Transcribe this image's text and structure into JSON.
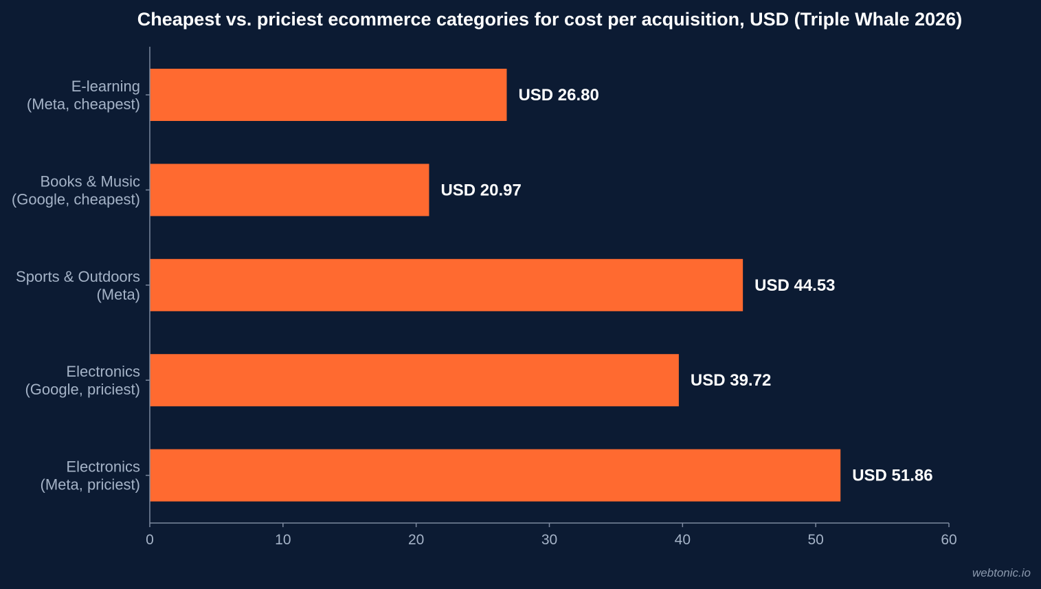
{
  "chart_data": {
    "type": "bar",
    "orientation": "horizontal",
    "title": "Cheapest vs. priciest ecommerce categories for cost per acquisition, USD (Triple Whale 2026)",
    "categories": [
      [
        "E-learning",
        "(Meta, cheapest)"
      ],
      [
        "Books & Music",
        "(Google, cheapest)"
      ],
      [
        "Sports & Outdoors",
        "(Meta)"
      ],
      [
        "Electronics",
        "(Google, priciest)"
      ],
      [
        "Electronics",
        "(Meta, priciest)"
      ]
    ],
    "values": [
      26.8,
      20.97,
      44.53,
      39.72,
      51.86
    ],
    "value_labels": [
      "USD 26.80",
      "USD 20.97",
      "USD 44.53",
      "USD 39.72",
      "USD 51.86"
    ],
    "xlim": [
      0,
      60
    ],
    "xticks": [
      0,
      10,
      20,
      30,
      40,
      50,
      60
    ],
    "grid": false,
    "legend": "none",
    "bar_color": "#ff6a30",
    "background_color": "#0c1b33"
  },
  "watermark": "webtonic.io"
}
